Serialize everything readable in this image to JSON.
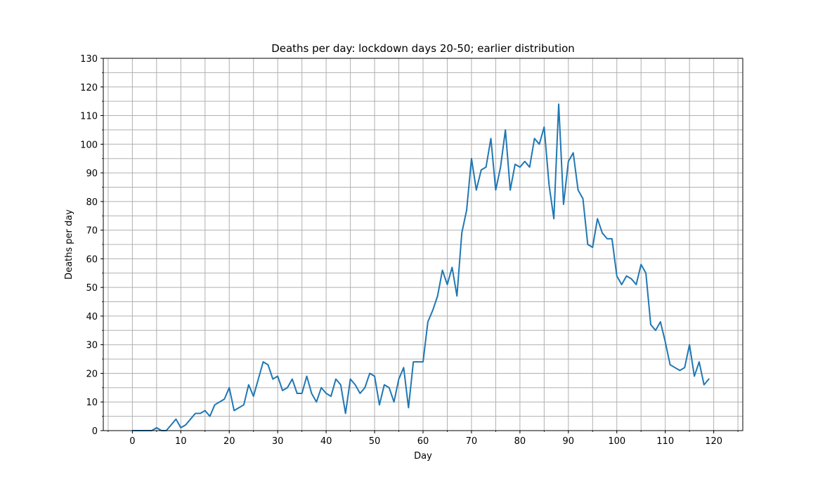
{
  "chart_data": {
    "type": "line",
    "title": "Deaths per day: lockdown days 20-50; earlier distribution",
    "xlabel": "Day",
    "ylabel": "Deaths per day",
    "xlim": [
      -6,
      126
    ],
    "ylim": [
      0,
      130
    ],
    "xticks": [
      0,
      10,
      20,
      30,
      40,
      50,
      60,
      70,
      80,
      90,
      100,
      110,
      120
    ],
    "yticks": [
      0,
      10,
      20,
      30,
      40,
      50,
      60,
      70,
      80,
      90,
      100,
      110,
      120,
      130
    ],
    "x_minor_step": 5,
    "y_minor_step": 5,
    "grid": true,
    "legend": "none",
    "series": [
      {
        "color": "#1f77b4",
        "x": [
          0,
          1,
          2,
          3,
          4,
          5,
          6,
          7,
          8,
          9,
          10,
          11,
          12,
          13,
          14,
          15,
          16,
          17,
          18,
          19,
          20,
          21,
          22,
          23,
          24,
          25,
          26,
          27,
          28,
          29,
          30,
          31,
          32,
          33,
          34,
          35,
          36,
          37,
          38,
          39,
          40,
          41,
          42,
          43,
          44,
          45,
          46,
          47,
          48,
          49,
          50,
          51,
          52,
          53,
          54,
          55,
          56,
          57,
          58,
          59,
          60,
          61,
          62,
          63,
          64,
          65,
          66,
          67,
          68,
          69,
          70,
          71,
          72,
          73,
          74,
          75,
          76,
          77,
          78,
          79,
          80,
          81,
          82,
          83,
          84,
          85,
          86,
          87,
          88,
          89,
          90,
          91,
          92,
          93,
          94,
          95,
          96,
          97,
          98,
          99,
          100,
          101,
          102,
          103,
          104,
          105,
          106,
          107,
          108,
          109,
          110,
          111,
          112,
          113,
          114,
          115,
          116,
          117,
          118,
          119
        ],
        "y": [
          0,
          0,
          0,
          0,
          0,
          1,
          0,
          0,
          2,
          4,
          1,
          2,
          4,
          6,
          6,
          7,
          5,
          9,
          10,
          11,
          15,
          7,
          8,
          9,
          16,
          12,
          18,
          24,
          23,
          18,
          19,
          14,
          15,
          18,
          13,
          13,
          19,
          13,
          10,
          15,
          13,
          12,
          18,
          16,
          6,
          18,
          16,
          13,
          15,
          20,
          19,
          9,
          16,
          15,
          10,
          18,
          22,
          8,
          24,
          24,
          24,
          38,
          42,
          47,
          56,
          51,
          57,
          47,
          69,
          77,
          95,
          84,
          91,
          92,
          102,
          84,
          92,
          105,
          84,
          93,
          92,
          94,
          92,
          102,
          100,
          106,
          86,
          74,
          114,
          79,
          94,
          97,
          84,
          81,
          65,
          64,
          74,
          69,
          67,
          67,
          54,
          51,
          54,
          53,
          51,
          58,
          55,
          37,
          35,
          38,
          31,
          23,
          22,
          21,
          22,
          30,
          19,
          24,
          16,
          18
        ]
      }
    ]
  }
}
